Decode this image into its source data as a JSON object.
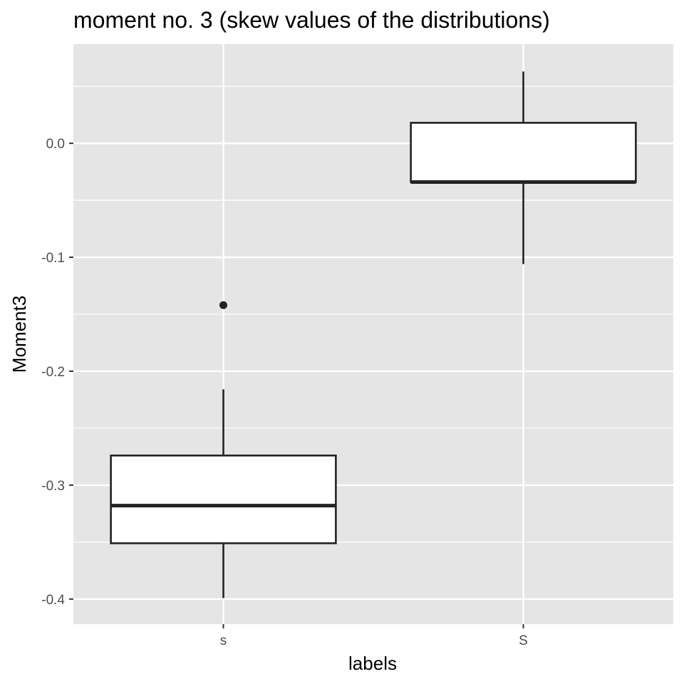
{
  "chart_data": {
    "type": "box",
    "title": "moment no. 3 (skew values of the distributions)",
    "xlabel": "labels",
    "ylabel": "Moment3",
    "categories": [
      "s",
      "S"
    ],
    "boxes": [
      {
        "category": "s",
        "lower_whisker": -0.399,
        "q1": -0.351,
        "median": -0.318,
        "q3": -0.274,
        "upper_whisker": -0.216,
        "outliers": [
          -0.142
        ]
      },
      {
        "category": "S",
        "lower_whisker": -0.106,
        "q1": -0.034,
        "median": -0.034,
        "q3": 0.018,
        "upper_whisker": 0.063,
        "outliers": []
      }
    ],
    "ylim": [
      -0.422,
      0.087
    ],
    "yticks": [
      0.0,
      -0.1,
      -0.2,
      -0.3,
      -0.4
    ],
    "ytick_labels": [
      "0.0",
      "-0.1",
      "-0.2",
      "-0.3",
      "-0.4"
    ],
    "grid": true,
    "colors": {
      "panel": "#e5e5e5",
      "grid": "#ffffff",
      "box_fill": "#ffffff",
      "box_line": "#222222"
    }
  }
}
